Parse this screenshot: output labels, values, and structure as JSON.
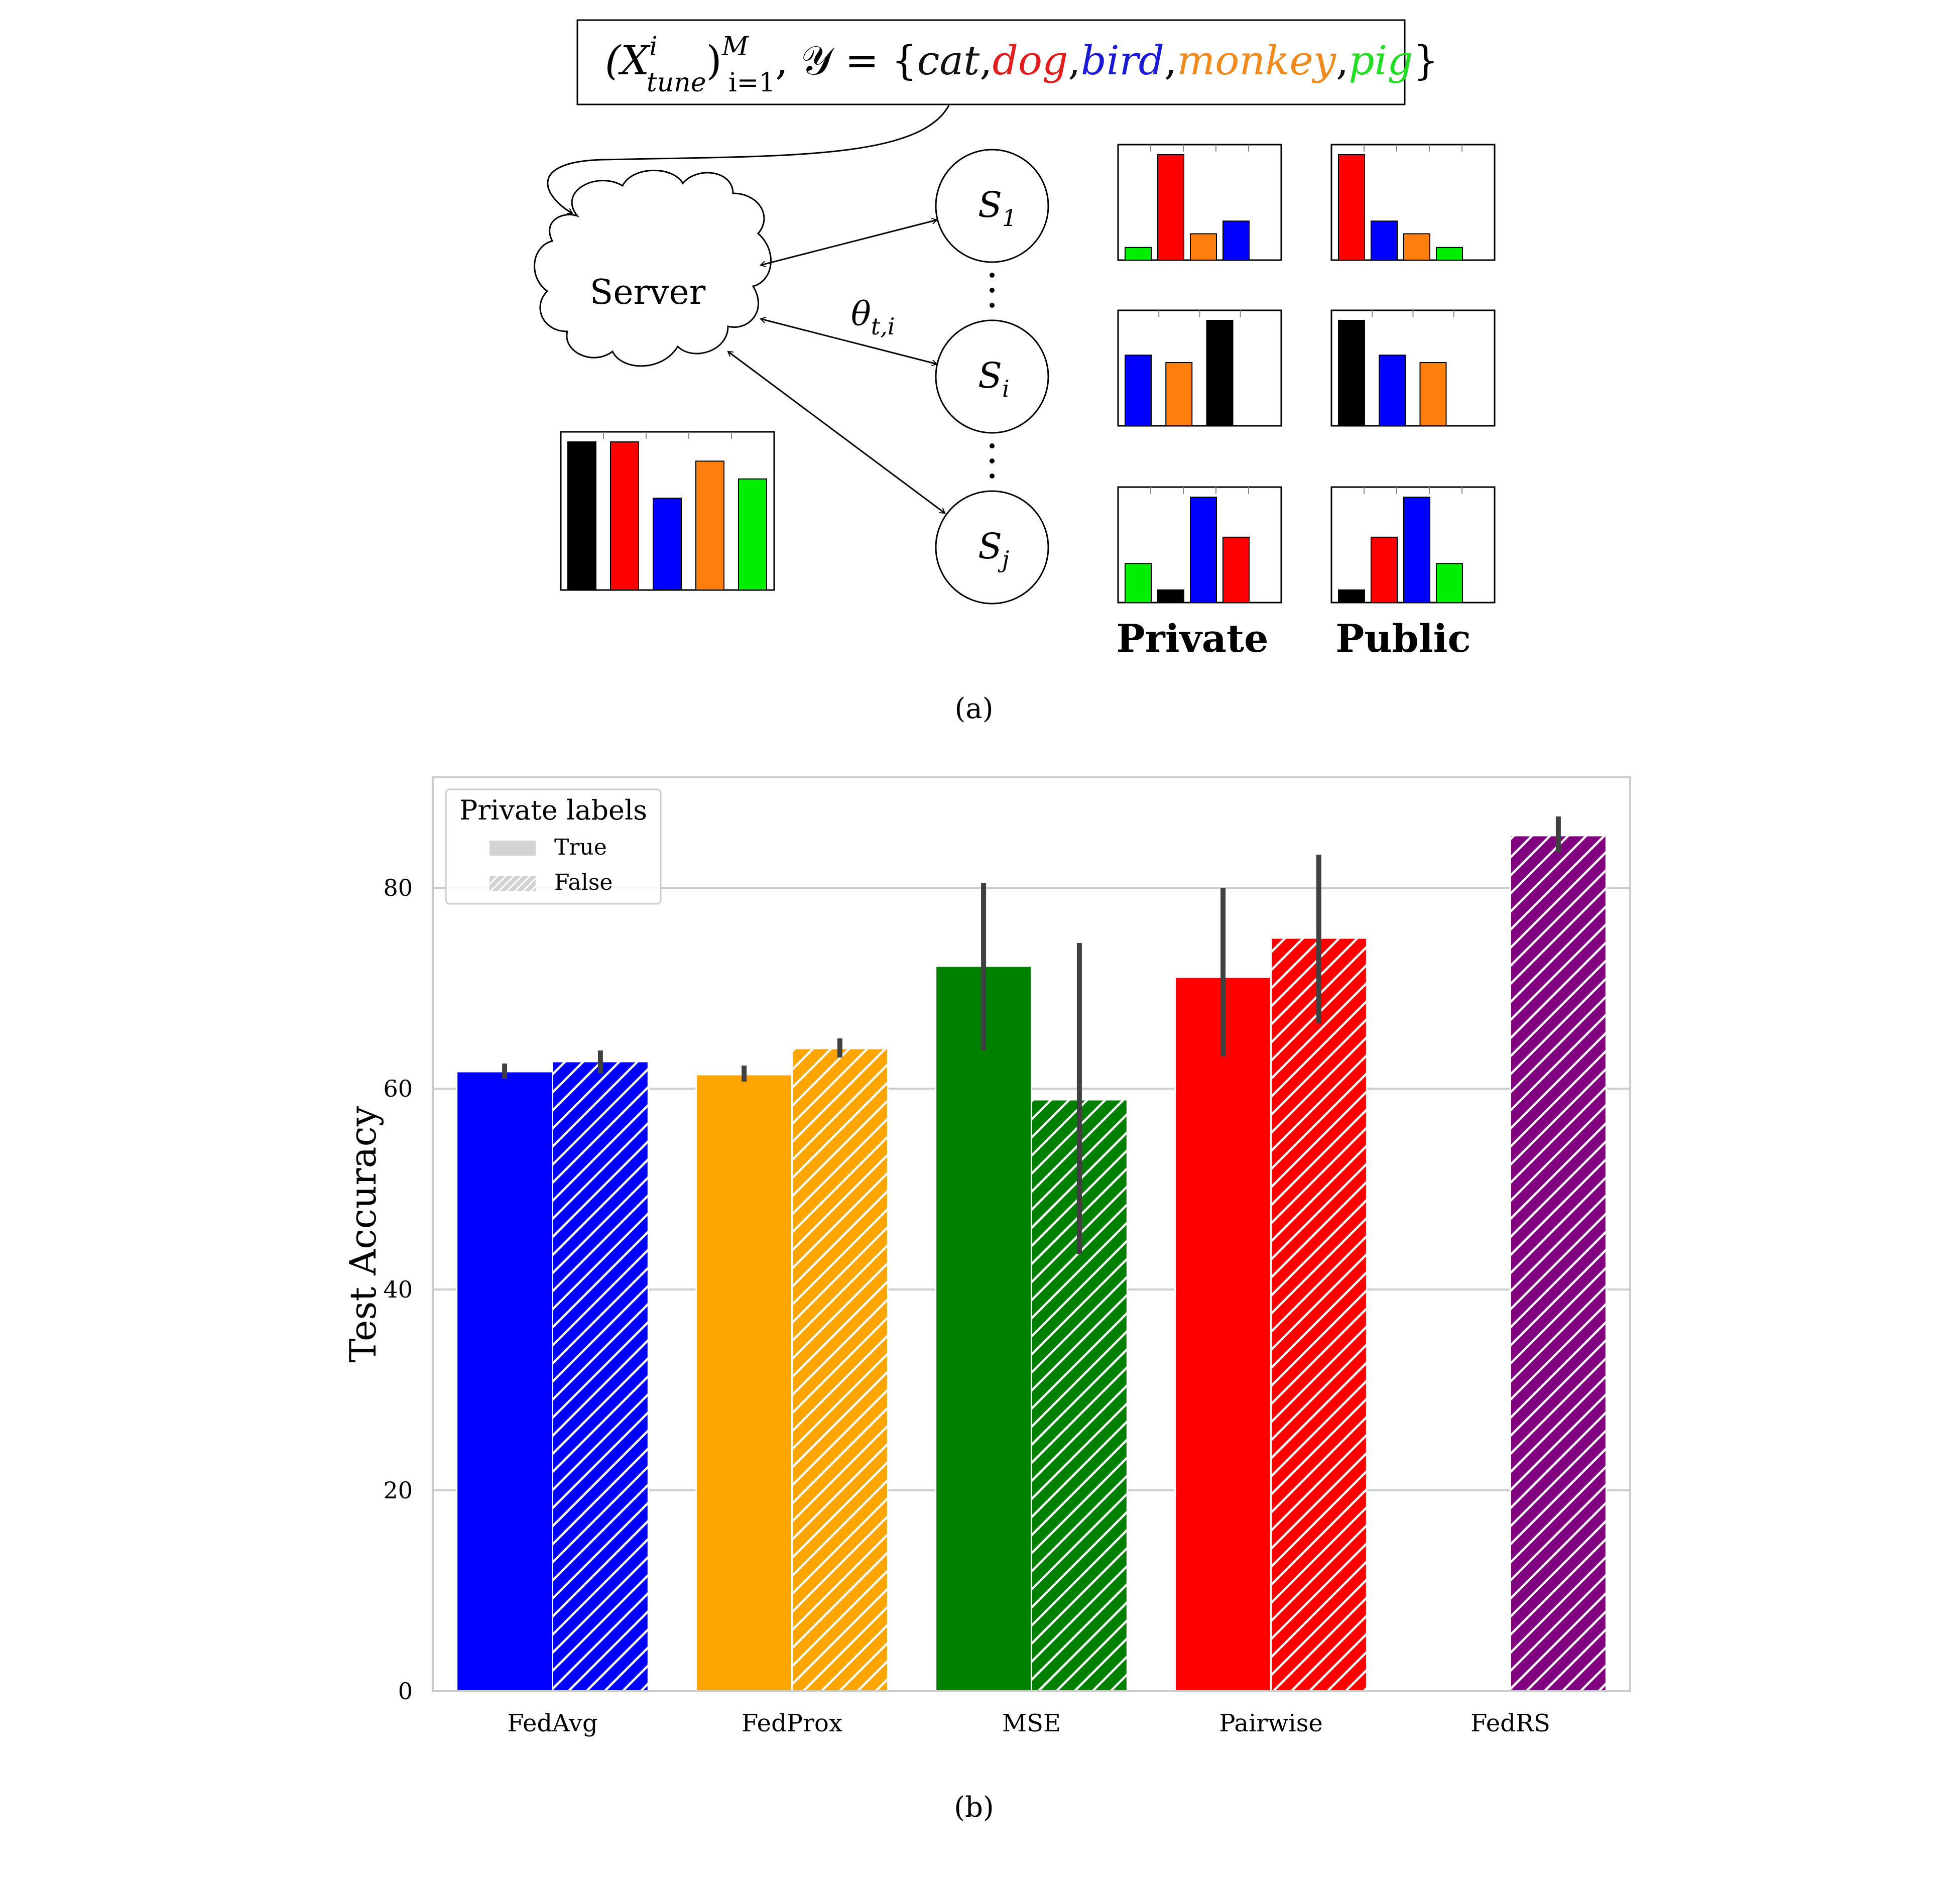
{
  "diagram": {
    "formula": {
      "prefix": "(X",
      "sup_i": "i",
      "sub_tune": "tune",
      "close": ")",
      "sup_M": "M",
      "sub_range": "i=1",
      "middle": ", 𝒴 = {",
      "labels": [
        {
          "text": "cat",
          "color": "#111111"
        },
        {
          "text": "dog",
          "color": "#e11d1d"
        },
        {
          "text": "bird",
          "color": "#1a1ad6"
        },
        {
          "text": "monkey",
          "color": "#f08a1c"
        },
        {
          "text": "pig",
          "color": "#22dd22"
        }
      ],
      "suffix": "}"
    },
    "server_label": "Server",
    "edge_label_base": "θ",
    "edge_label_sub": "t,i",
    "nodes": [
      {
        "base": "S",
        "sub": "1"
      },
      {
        "base": "S",
        "sub": "i"
      },
      {
        "base": "S",
        "sub": "j"
      }
    ],
    "server_hist": [
      {
        "color": "#000000",
        "value": 1.0
      },
      {
        "color": "#ff0000",
        "value": 1.0
      },
      {
        "color": "#0000ff",
        "value": 0.62
      },
      {
        "color": "#ff7f0e",
        "value": 0.87
      },
      {
        "color": "#00ee00",
        "value": 0.75
      }
    ],
    "private_hists": [
      [
        {
          "color": "#00ee00",
          "value": 0.12
        },
        {
          "color": "#ff0000",
          "value": 1.0
        },
        {
          "color": "#ff7f0e",
          "value": 0.25
        },
        {
          "color": "#0000ff",
          "value": 0.37
        }
      ],
      [
        {
          "color": "#0000ff",
          "value": 0.67
        },
        {
          "color": "#ff7f0e",
          "value": 0.6
        },
        {
          "color": "#000000",
          "value": 1.0
        }
      ],
      [
        {
          "color": "#00ee00",
          "value": 0.37
        },
        {
          "color": "#000000",
          "value": 0.12
        },
        {
          "color": "#0000ff",
          "value": 1.0
        },
        {
          "color": "#ff0000",
          "value": 0.62
        }
      ]
    ],
    "public_hists": [
      [
        {
          "color": "#ff0000",
          "value": 1.0
        },
        {
          "color": "#0000ff",
          "value": 0.37
        },
        {
          "color": "#ff7f0e",
          "value": 0.25
        },
        {
          "color": "#00ee00",
          "value": 0.12
        }
      ],
      [
        {
          "color": "#000000",
          "value": 1.0
        },
        {
          "color": "#0000ff",
          "value": 0.67
        },
        {
          "color": "#ff7f0e",
          "value": 0.6
        }
      ],
      [
        {
          "color": "#000000",
          "value": 0.12
        },
        {
          "color": "#ff0000",
          "value": 0.62
        },
        {
          "color": "#0000ff",
          "value": 1.0
        },
        {
          "color": "#00ee00",
          "value": 0.37
        }
      ]
    ],
    "private_label": "Private",
    "public_label": "Public",
    "caption": "(a)"
  },
  "chart_data": {
    "type": "bar",
    "ylabel": "Test Accuracy",
    "ylim": [
      0,
      91
    ],
    "yticks": [
      0,
      20,
      40,
      60,
      80
    ],
    "grid": true,
    "legend": {
      "title": "Private labels",
      "placement": "top-left",
      "entries": [
        {
          "label": "True",
          "hatch": false
        },
        {
          "label": "False",
          "hatch": true
        }
      ]
    },
    "categories": [
      "FedAvg",
      "FedProx",
      "MSE",
      "Pairwise",
      "FedRS"
    ],
    "colors": [
      "#0000ff",
      "#ffa500",
      "#008000",
      "#ff0000",
      "#800080"
    ],
    "series": [
      {
        "name": "True",
        "hatch": false,
        "values": [
          61.7,
          61.4,
          72.2,
          71.1,
          null
        ],
        "err_low": [
          61.0,
          60.7,
          63.8,
          63.2,
          null
        ],
        "err_high": [
          62.5,
          62.3,
          80.5,
          80.0,
          null
        ]
      },
      {
        "name": "False",
        "hatch": true,
        "values": [
          62.7,
          64.0,
          58.9,
          75.0,
          85.2
        ],
        "err_low": [
          61.5,
          63.1,
          43.5,
          66.5,
          83.5
        ],
        "err_high": [
          63.8,
          65.0,
          74.5,
          83.3,
          87.1
        ]
      }
    ],
    "caption": "(b)"
  }
}
